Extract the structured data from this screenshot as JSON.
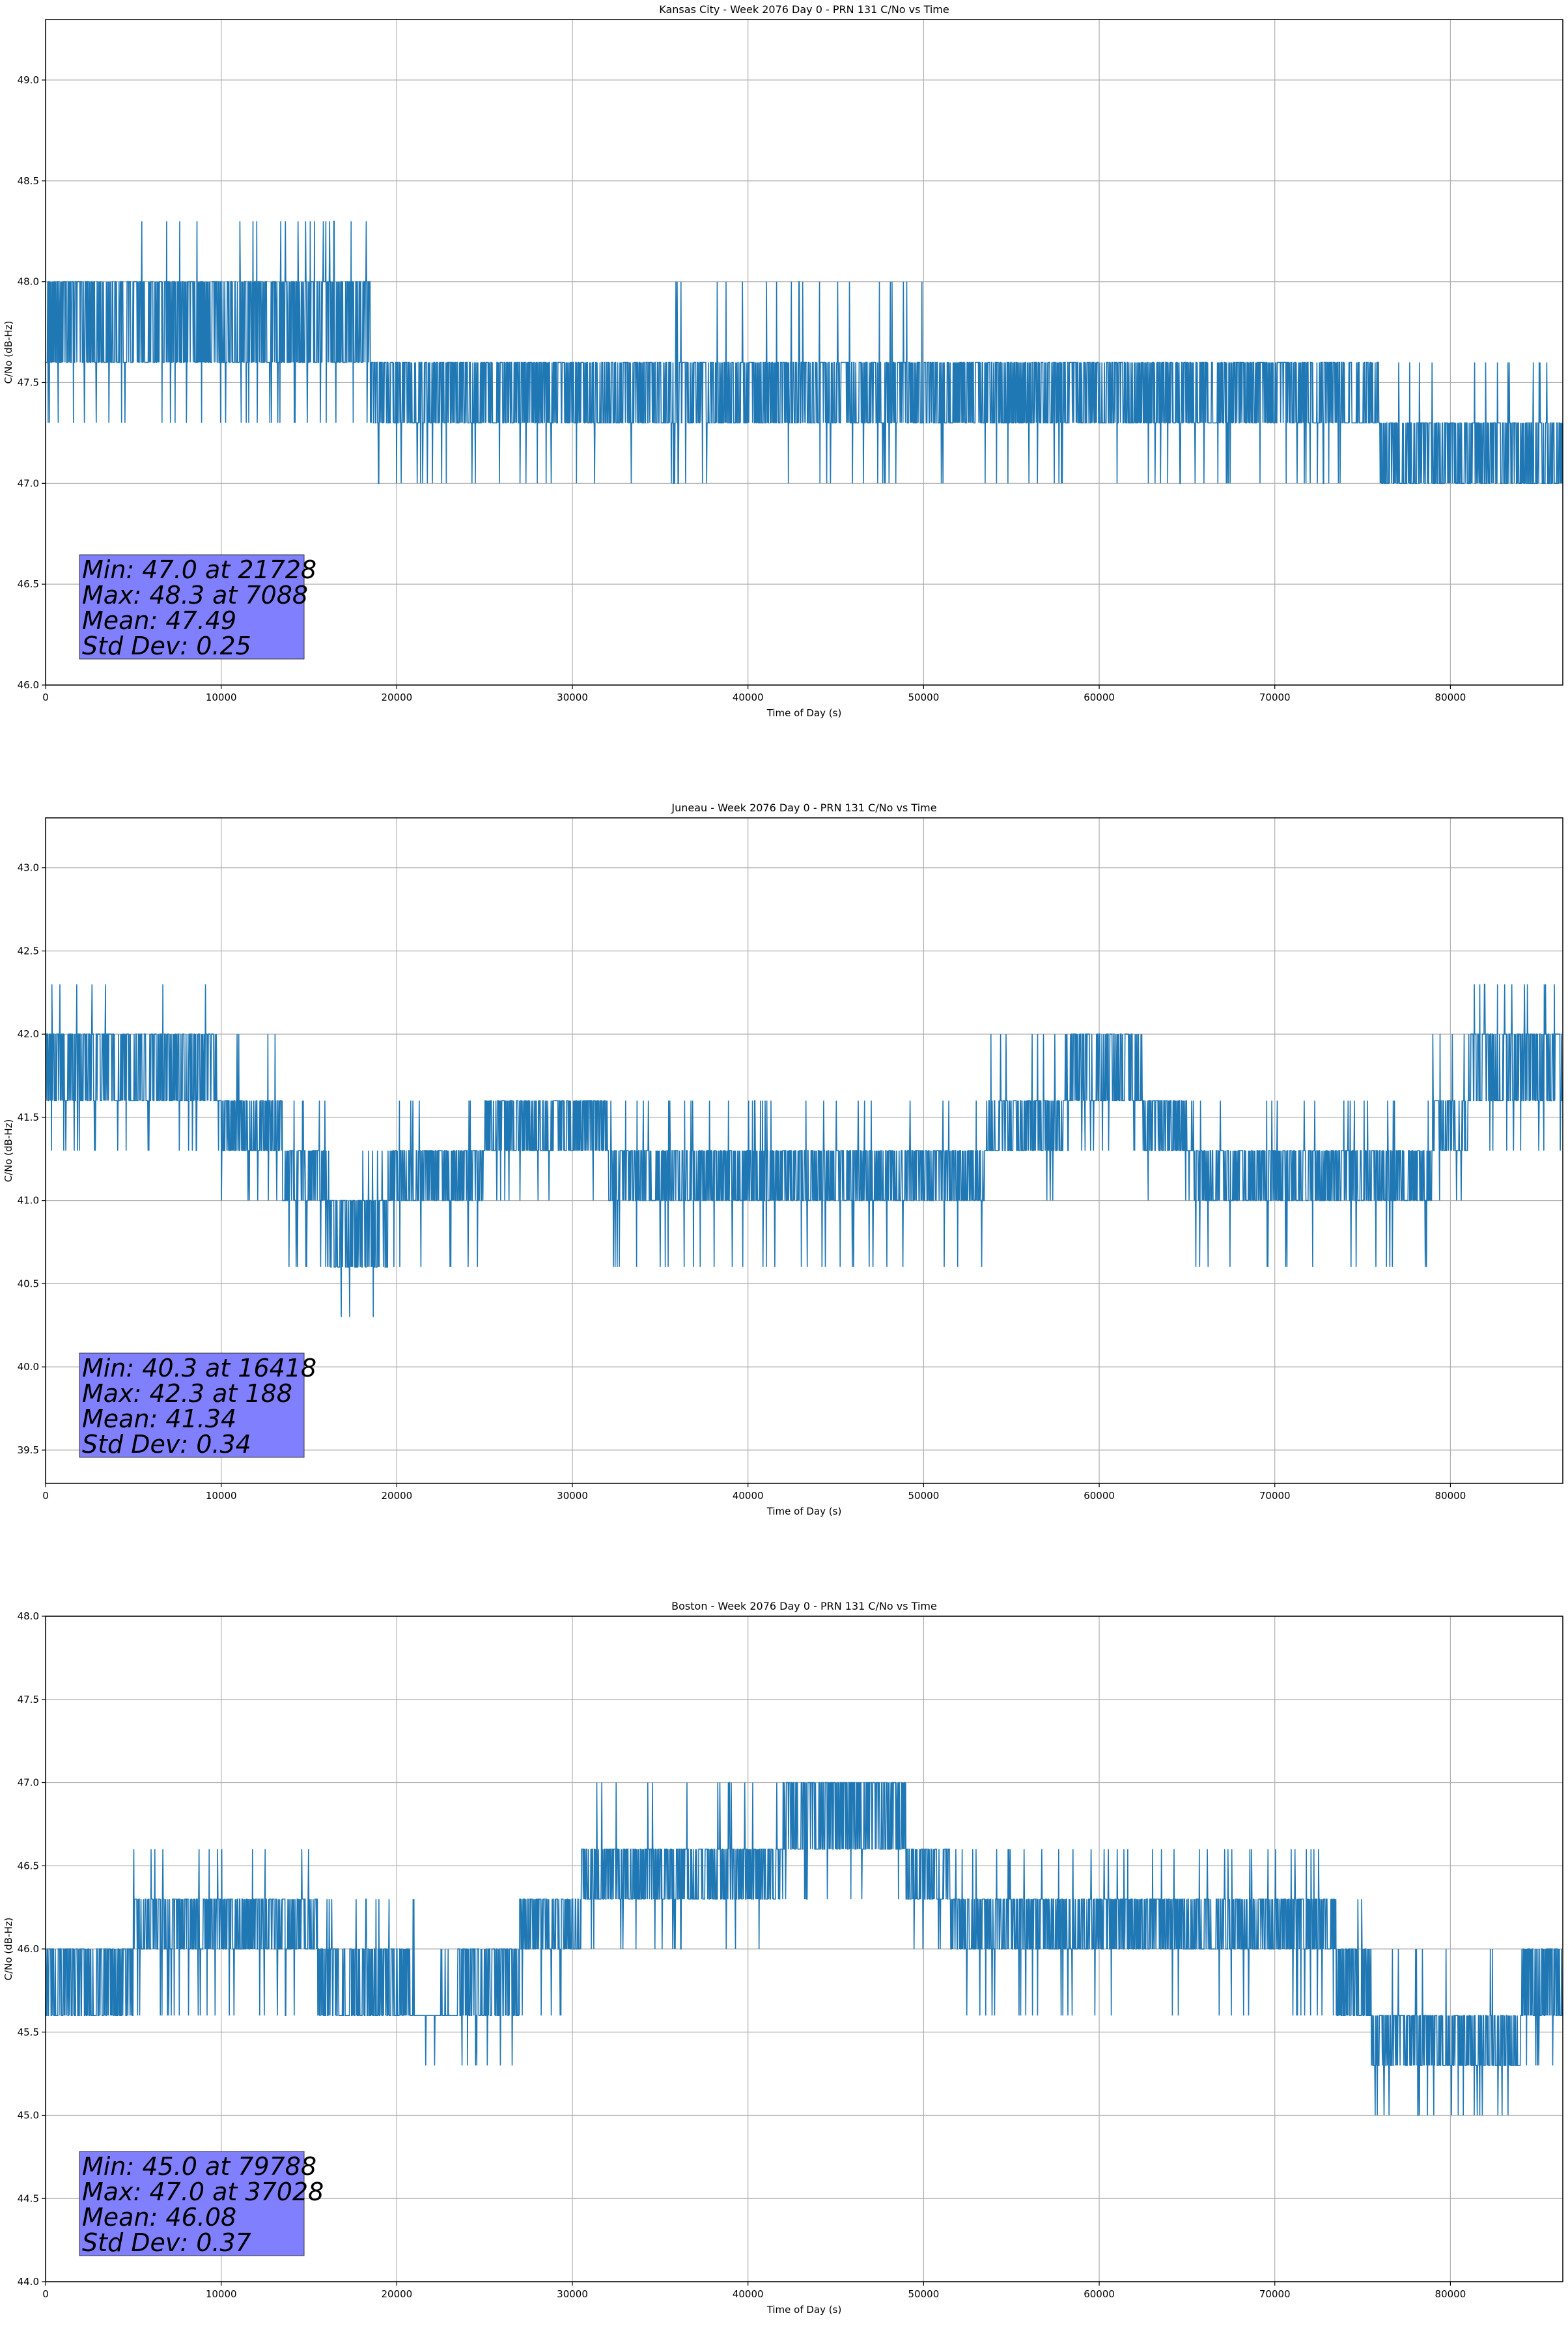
{
  "chart_data": [
    {
      "type": "line",
      "title": "Kansas City - Week 2076 Day 0 - PRN 131 C/No vs Time",
      "xlabel": "Time of Day (s)",
      "ylabel": "C/No (dB-Hz)",
      "xlim": [
        0,
        86400
      ],
      "ylim": [
        46.0,
        49.3
      ],
      "xticks": [
        0,
        10000,
        20000,
        30000,
        40000,
        50000,
        60000,
        70000,
        80000
      ],
      "yticks": [
        "46.0",
        "46.5",
        "47.0",
        "47.5",
        "48.0",
        "48.5",
        "49.0"
      ],
      "grid": true,
      "line_color": "#1f77b4",
      "stats_box_color": "#8080ff",
      "stats": [
        "Min: 47.0 at 21728",
        "Max: 48.3 at 7088",
        "Mean: 47.49",
        "Std Dev: 0.25"
      ],
      "segments": [
        {
          "x0": 0,
          "x1": 5000,
          "lo": 47.6,
          "hi": 48.0,
          "spike_lo": 47.3,
          "spike_hi": 48.0
        },
        {
          "x0": 5000,
          "x1": 18500,
          "lo": 47.6,
          "hi": 48.0,
          "spike_lo": 47.3,
          "spike_hi": 48.3
        },
        {
          "x0": 18500,
          "x1": 34000,
          "lo": 47.3,
          "hi": 47.6,
          "spike_lo": 47.0,
          "spike_hi": 47.6
        },
        {
          "x0": 34000,
          "x1": 50000,
          "lo": 47.3,
          "hi": 47.6,
          "spike_lo": 47.0,
          "spike_hi": 48.0
        },
        {
          "x0": 50000,
          "x1": 76000,
          "lo": 47.3,
          "hi": 47.6,
          "spike_lo": 47.0,
          "spike_hi": 47.6
        },
        {
          "x0": 76000,
          "x1": 86400,
          "lo": 47.0,
          "hi": 47.3,
          "spike_lo": 47.0,
          "spike_hi": 47.6
        }
      ]
    },
    {
      "type": "line",
      "title": "Juneau - Week 2076 Day 0 - PRN 131 C/No vs Time",
      "xlabel": "Time of Day (s)",
      "ylabel": "C/No (dB-Hz)",
      "xlim": [
        0,
        86400
      ],
      "ylim": [
        39.3,
        43.3
      ],
      "xticks": [
        0,
        10000,
        20000,
        30000,
        40000,
        50000,
        60000,
        70000,
        80000
      ],
      "yticks": [
        "39.5",
        "40.0",
        "40.5",
        "41.0",
        "41.5",
        "42.0",
        "42.5",
        "43.0"
      ],
      "grid": true,
      "line_color": "#1f77b4",
      "stats_box_color": "#8080ff",
      "stats": [
        "Min: 40.3 at 16418",
        "Max: 42.3 at 188",
        "Mean: 41.34",
        "Std Dev: 0.34"
      ],
      "segments": [
        {
          "x0": 0,
          "x1": 9800,
          "lo": 41.6,
          "hi": 42.0,
          "spike_lo": 41.3,
          "spike_hi": 42.3
        },
        {
          "x0": 9800,
          "x1": 13500,
          "lo": 41.3,
          "hi": 41.6,
          "spike_lo": 41.0,
          "spike_hi": 42.0
        },
        {
          "x0": 13500,
          "x1": 16000,
          "lo": 41.0,
          "hi": 41.3,
          "spike_lo": 40.6,
          "spike_hi": 41.6
        },
        {
          "x0": 16000,
          "x1": 19500,
          "lo": 40.6,
          "hi": 41.0,
          "spike_lo": 40.3,
          "spike_hi": 41.3
        },
        {
          "x0": 19500,
          "x1": 25000,
          "lo": 41.0,
          "hi": 41.3,
          "spike_lo": 40.6,
          "spike_hi": 41.6
        },
        {
          "x0": 25000,
          "x1": 32000,
          "lo": 41.3,
          "hi": 41.6,
          "spike_lo": 41.0,
          "spike_hi": 41.6
        },
        {
          "x0": 32000,
          "x1": 53500,
          "lo": 41.0,
          "hi": 41.3,
          "spike_lo": 40.6,
          "spike_hi": 41.6
        },
        {
          "x0": 53500,
          "x1": 58000,
          "lo": 41.3,
          "hi": 41.6,
          "spike_lo": 41.0,
          "spike_hi": 42.0
        },
        {
          "x0": 58000,
          "x1": 62500,
          "lo": 41.6,
          "hi": 42.0,
          "spike_lo": 41.3,
          "spike_hi": 42.0
        },
        {
          "x0": 62500,
          "x1": 65000,
          "lo": 41.3,
          "hi": 41.6,
          "spike_lo": 41.0,
          "spike_hi": 41.6
        },
        {
          "x0": 65000,
          "x1": 79000,
          "lo": 41.0,
          "hi": 41.3,
          "spike_lo": 40.6,
          "spike_hi": 41.6
        },
        {
          "x0": 79000,
          "x1": 81000,
          "lo": 41.3,
          "hi": 41.6,
          "spike_lo": 41.0,
          "spike_hi": 42.0
        },
        {
          "x0": 81000,
          "x1": 86400,
          "lo": 41.6,
          "hi": 42.0,
          "spike_lo": 41.3,
          "spike_hi": 42.3
        }
      ]
    },
    {
      "type": "line",
      "title": "Boston - Week 2076 Day 0 - PRN 131 C/No vs Time",
      "xlabel": "Time of Day (s)",
      "ylabel": "C/No (dB-Hz)",
      "xlim": [
        0,
        86400
      ],
      "ylim": [
        44.0,
        48.0
      ],
      "xticks": [
        0,
        10000,
        20000,
        30000,
        40000,
        50000,
        60000,
        70000,
        80000
      ],
      "yticks": [
        "44.0",
        "44.5",
        "45.0",
        "45.5",
        "46.0",
        "46.5",
        "47.0",
        "47.5",
        "48.0"
      ],
      "grid": true,
      "line_color": "#1f77b4",
      "stats_box_color": "#8080ff",
      "stats": [
        "Min: 45.0 at 79788",
        "Max: 47.0 at 37028",
        "Mean: 46.08",
        "Std Dev: 0.37"
      ],
      "segments": [
        {
          "x0": 0,
          "x1": 5000,
          "lo": 45.6,
          "hi": 46.0,
          "spike_lo": 45.6,
          "spike_hi": 46.0
        },
        {
          "x0": 5000,
          "x1": 15500,
          "lo": 46.0,
          "hi": 46.3,
          "spike_lo": 45.6,
          "spike_hi": 46.6
        },
        {
          "x0": 15500,
          "x1": 21000,
          "lo": 45.6,
          "hi": 46.0,
          "spike_lo": 45.6,
          "spike_hi": 46.3
        },
        {
          "x0": 21000,
          "x1": 23500,
          "lo": 45.6,
          "hi": 45.6,
          "spike_lo": 45.3,
          "spike_hi": 46.0
        },
        {
          "x0": 23500,
          "x1": 27000,
          "lo": 45.6,
          "hi": 46.0,
          "spike_lo": 45.3,
          "spike_hi": 46.0
        },
        {
          "x0": 27000,
          "x1": 30500,
          "lo": 46.0,
          "hi": 46.3,
          "spike_lo": 45.6,
          "spike_hi": 46.3
        },
        {
          "x0": 30500,
          "x1": 42000,
          "lo": 46.3,
          "hi": 46.6,
          "spike_lo": 46.0,
          "spike_hi": 47.0
        },
        {
          "x0": 42000,
          "x1": 49000,
          "lo": 46.6,
          "hi": 47.0,
          "spike_lo": 46.3,
          "spike_hi": 47.0
        },
        {
          "x0": 49000,
          "x1": 51500,
          "lo": 46.3,
          "hi": 46.6,
          "spike_lo": 46.0,
          "spike_hi": 46.6
        },
        {
          "x0": 51500,
          "x1": 73500,
          "lo": 46.0,
          "hi": 46.3,
          "spike_lo": 45.6,
          "spike_hi": 46.6
        },
        {
          "x0": 73500,
          "x1": 75500,
          "lo": 45.6,
          "hi": 46.0,
          "spike_lo": 45.6,
          "spike_hi": 46.3
        },
        {
          "x0": 75500,
          "x1": 84000,
          "lo": 45.3,
          "hi": 45.6,
          "spike_lo": 45.0,
          "spike_hi": 46.0
        },
        {
          "x0": 84000,
          "x1": 86400,
          "lo": 45.6,
          "hi": 46.0,
          "spike_lo": 45.3,
          "spike_hi": 46.0
        }
      ]
    }
  ]
}
